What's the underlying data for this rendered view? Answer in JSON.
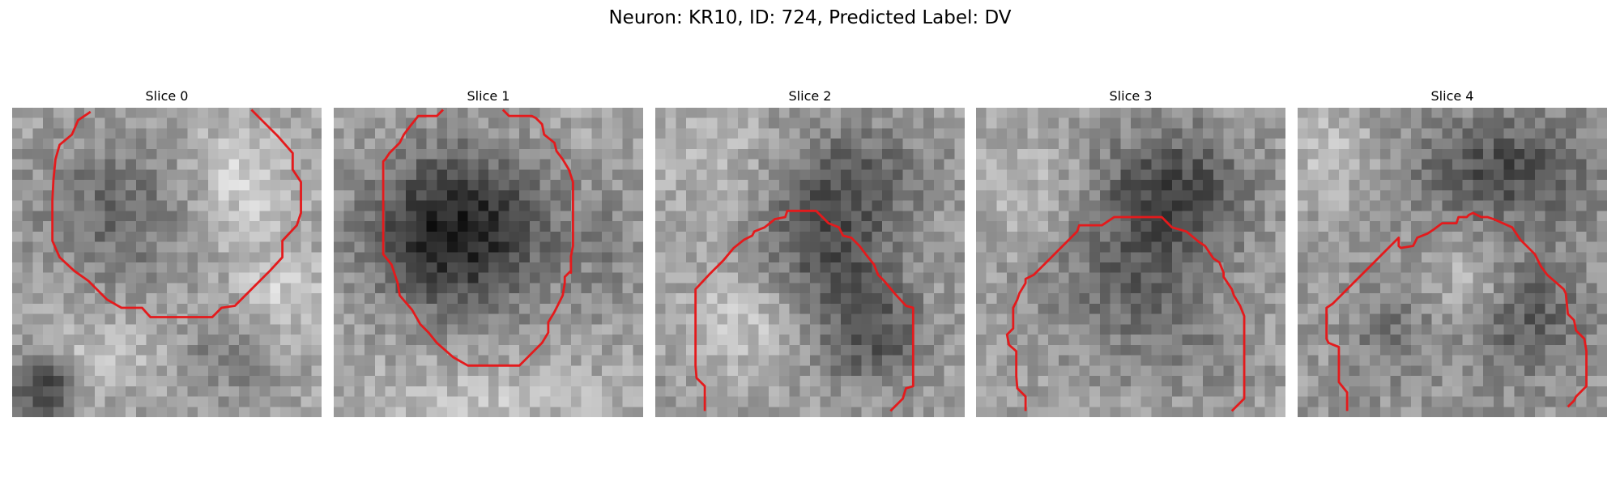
{
  "figure": {
    "title": "Neuron: KR10, ID: 724, Predicted Label: DV"
  },
  "contour_color": "#e41a1c",
  "panels": [
    {
      "title": "Slice 0"
    },
    {
      "title": "Slice 1"
    },
    {
      "title": "Slice 2"
    },
    {
      "title": "Slice 3"
    },
    {
      "title": "Slice 4"
    }
  ]
}
